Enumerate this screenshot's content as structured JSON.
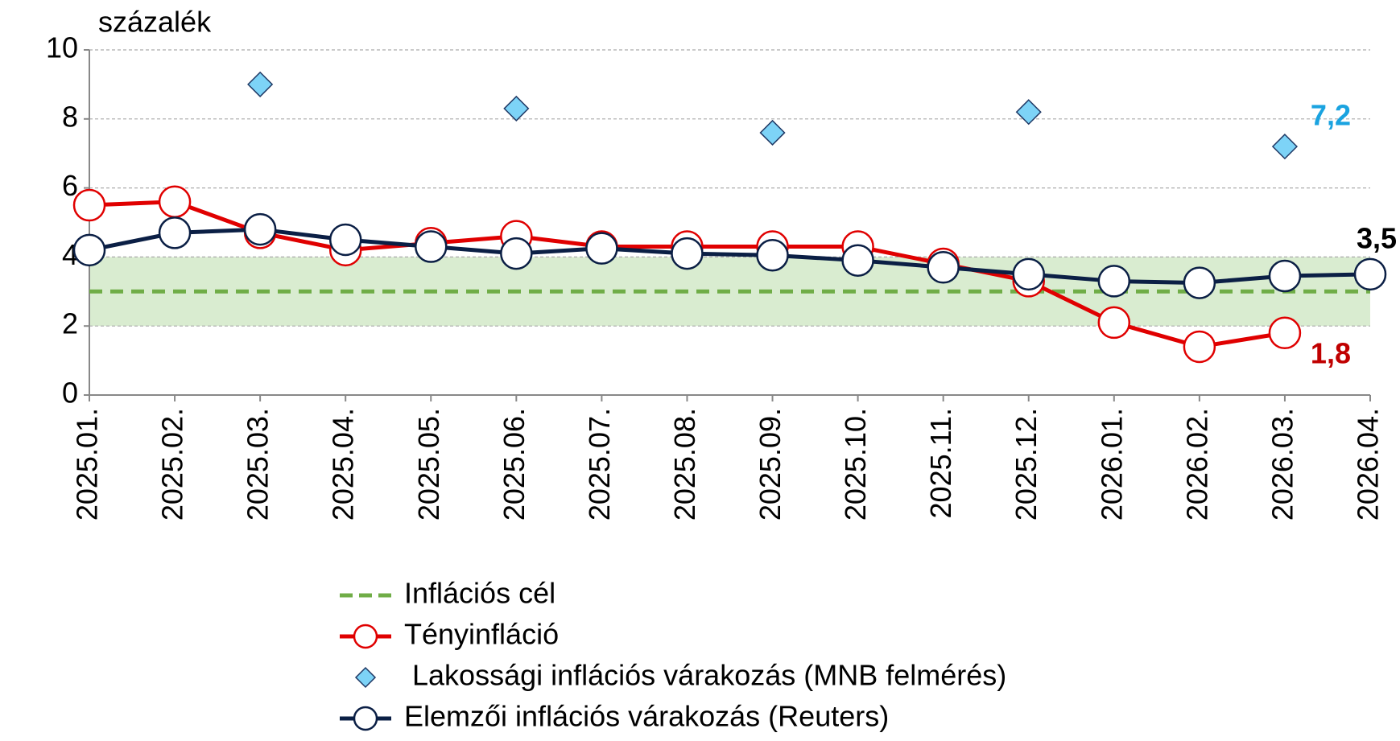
{
  "chart_data": {
    "type": "line",
    "y_label": "százalék",
    "categories": [
      "2025.01.",
      "2025.02.",
      "2025.03.",
      "2025.04.",
      "2025.05.",
      "2025.06.",
      "2025.07.",
      "2025.08.",
      "2025.09.",
      "2025.10.",
      "2025.11.",
      "2025.12.",
      "2026.01.",
      "2026.02.",
      "2026.03.",
      "2026.04."
    ],
    "ylim": [
      0,
      10
    ],
    "yticks": [
      0,
      2,
      4,
      6,
      8,
      10
    ],
    "grid": true,
    "target_band": [
      2,
      4
    ],
    "band_color": "#d9ecd0",
    "series": [
      {
        "name": "Inflációs cél",
        "style": "dashed",
        "color": "#70ad47",
        "values": [
          3,
          3,
          3,
          3,
          3,
          3,
          3,
          3,
          3,
          3,
          3,
          3,
          3,
          3,
          3,
          3
        ]
      },
      {
        "name": "Tényinfláció",
        "style": "line-circle",
        "color": "#e00000",
        "values": [
          5.5,
          5.6,
          4.7,
          4.2,
          4.4,
          4.6,
          4.3,
          4.3,
          4.3,
          4.3,
          3.8,
          3.3,
          2.1,
          1.4,
          1.8,
          null
        ],
        "value_labels": [
          null,
          null,
          null,
          null,
          null,
          null,
          null,
          null,
          null,
          null,
          null,
          null,
          null,
          null,
          "1,8",
          null
        ],
        "label_color": "#c00000"
      },
      {
        "name": "Lakossági inflációs várakozás (MNB felmérés)",
        "style": "diamond",
        "color": "#7dd3f7",
        "values": [
          null,
          null,
          9.0,
          null,
          null,
          8.3,
          null,
          null,
          7.6,
          null,
          null,
          8.2,
          null,
          null,
          7.2,
          null
        ],
        "value_labels": [
          null,
          null,
          null,
          null,
          null,
          null,
          null,
          null,
          null,
          null,
          null,
          null,
          null,
          null,
          "7,2",
          null
        ],
        "label_color": "#1aa3e0"
      },
      {
        "name": "Elemzői inflációs várakozás (Reuters)",
        "style": "line-circle",
        "color": "#0b1f45",
        "values": [
          4.2,
          4.7,
          4.8,
          4.5,
          4.3,
          4.1,
          4.25,
          4.1,
          4.05,
          3.9,
          3.7,
          3.5,
          3.3,
          3.25,
          3.45,
          3.5
        ],
        "value_labels": [
          null,
          null,
          null,
          null,
          null,
          null,
          null,
          null,
          null,
          null,
          null,
          null,
          null,
          null,
          null,
          "3,5"
        ],
        "label_color": "#000000"
      }
    ]
  }
}
